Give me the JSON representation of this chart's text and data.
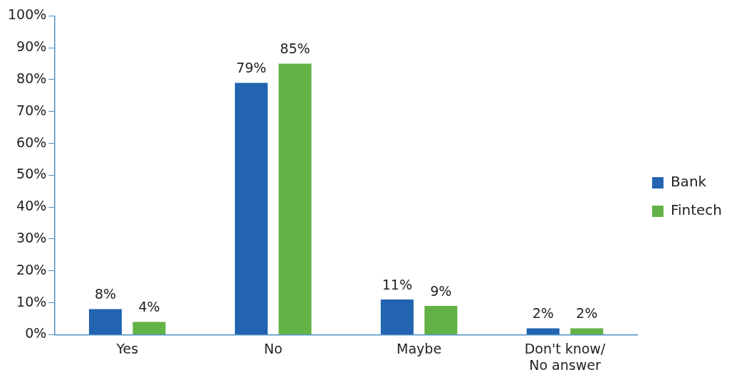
{
  "chart_data": {
    "type": "bar",
    "categories": [
      "Yes",
      "No",
      "Maybe",
      "Don't know/ No answer"
    ],
    "series": [
      {
        "name": "Bank",
        "color": "#2364b0",
        "values": [
          8,
          79,
          11,
          2
        ],
        "value_labels": [
          "8%",
          "79%",
          "11%",
          "2%"
        ]
      },
      {
        "name": "Fintech",
        "color": "#62b246",
        "values": [
          4,
          85,
          9,
          2
        ],
        "value_labels": [
          "4%",
          "85%",
          "9%",
          "2%"
        ]
      }
    ],
    "ylim": [
      0,
      100
    ],
    "yticks": [
      {
        "value": 0,
        "label": "0%"
      },
      {
        "value": 10,
        "label": "10%"
      },
      {
        "value": 20,
        "label": "20%"
      },
      {
        "value": 30,
        "label": "30%"
      },
      {
        "value": 40,
        "label": "40%"
      },
      {
        "value": 50,
        "label": "50%"
      },
      {
        "value": 60,
        "label": "60%"
      },
      {
        "value": 70,
        "label": "70%"
      },
      {
        "value": 80,
        "label": "80%"
      },
      {
        "value": 90,
        "label": "90%"
      },
      {
        "value": 100,
        "label": "100%"
      }
    ],
    "grid": false,
    "legend": "right"
  }
}
